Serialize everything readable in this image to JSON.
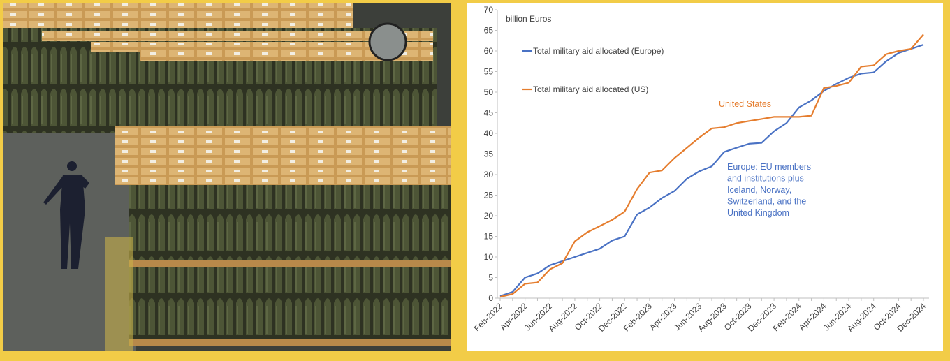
{
  "chart_data": {
    "type": "line",
    "y_axis_label": "billion Euros",
    "categories": [
      "Feb-2022",
      null,
      "Apr-2022",
      null,
      "Jun-2022",
      null,
      "Aug-2022",
      null,
      "Oct-2022",
      null,
      "Dec-2022",
      null,
      "Feb-2023",
      null,
      "Apr-2023",
      null,
      "Jun-2023",
      null,
      "Aug-2023",
      null,
      "Oct-2023",
      null,
      "Dec-2023",
      null,
      "Feb-2024",
      null,
      "Apr-2024",
      null,
      "Jun-2024",
      null,
      "Aug-2024",
      null,
      "Oct-2024",
      null,
      "Dec-2024"
    ],
    "series": [
      {
        "name": "Total military aid allocated (Europe)",
        "color": "#4a72c4",
        "values": [
          0.5,
          1.5,
          5,
          6,
          8,
          9,
          10,
          11,
          12,
          14,
          15,
          20.3,
          22,
          24.3,
          26,
          29,
          30.8,
          32,
          35.5,
          36.5,
          37.5,
          37.7,
          40.5,
          42.5,
          46.3,
          48,
          50.3,
          52,
          53.5,
          54.5,
          54.8,
          57.5,
          59.5,
          60.5,
          61.5
        ]
      },
      {
        "name": "Total military aid allocated (US)",
        "color": "#e57d2e",
        "values": [
          0.3,
          1,
          3.5,
          3.8,
          7,
          8.5,
          13.8,
          16,
          17.5,
          19,
          21,
          26.5,
          30.5,
          31,
          34,
          36.5,
          39,
          41.2,
          41.5,
          42.5,
          43,
          43.5,
          44,
          44,
          44,
          44.3,
          51,
          51.5,
          52.3,
          56.2,
          56.5,
          59.2,
          60,
          60.5,
          64
        ]
      }
    ],
    "annotations": [
      {
        "text": [
          "United States"
        ],
        "color": "#e57d2e"
      },
      {
        "text": [
          "Europe: EU members",
          "and institutions plus",
          "Iceland, Norway,",
          "Switzerland, and the",
          "United Kingdom"
        ],
        "color": "#4a72c4"
      }
    ],
    "ylim": [
      0,
      70
    ],
    "yticks": [
      0,
      5,
      10,
      15,
      20,
      25,
      30,
      35,
      40,
      45,
      50,
      55,
      60,
      65,
      70
    ],
    "grid": false
  }
}
